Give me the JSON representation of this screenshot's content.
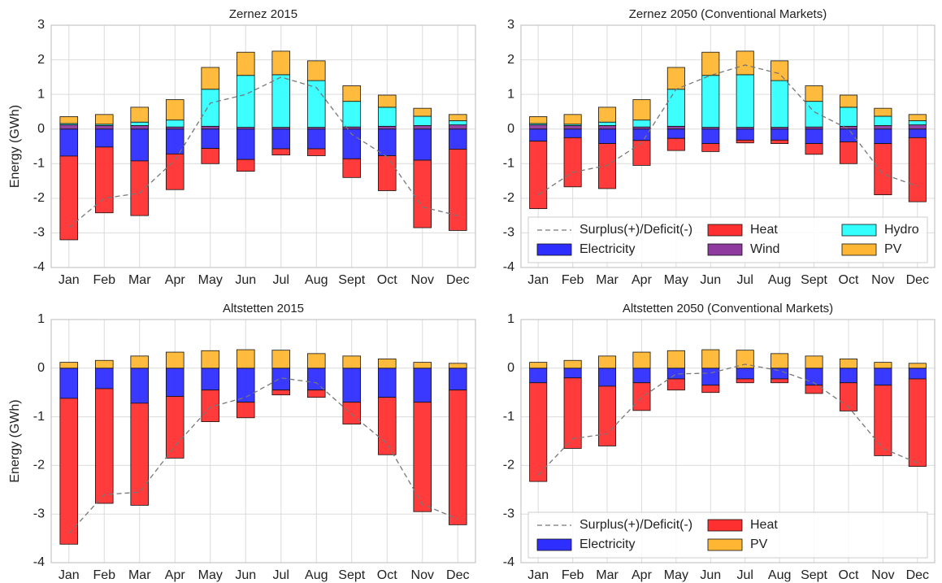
{
  "chart_data": [
    {
      "type": "bar",
      "stacked": true,
      "title": "Zernez 2015",
      "ylabel": "Energy (GWh)",
      "categories": [
        "Jan",
        "Feb",
        "Mar",
        "Apr",
        "May",
        "Jun",
        "Jul",
        "Aug",
        "Sept",
        "Oct",
        "Nov",
        "Dec"
      ],
      "ylim": [
        -4,
        3
      ],
      "yticks": [
        -4,
        -3,
        -2,
        -1,
        0,
        1,
        2,
        3
      ],
      "grid": true,
      "legend": false,
      "line": {
        "name": "Surplus(+)/Deficit(-)",
        "color": "#777777",
        "values": [
          -2.85,
          -2.0,
          -1.85,
          -0.9,
          0.75,
          1.0,
          1.5,
          1.2,
          -0.15,
          -0.8,
          -2.25,
          -2.5
        ]
      },
      "series": [
        {
          "name": "Electricity",
          "color": "#2e2eff",
          "values": [
            -0.78,
            -0.52,
            -0.92,
            -0.72,
            -0.56,
            -0.88,
            -0.57,
            -0.57,
            -0.86,
            -0.77,
            -0.9,
            -0.58
          ]
        },
        {
          "name": "Heat",
          "color": "#ff3030",
          "values": [
            -2.42,
            -1.9,
            -1.58,
            -1.03,
            -0.44,
            -0.34,
            -0.18,
            -0.2,
            -0.54,
            -1.01,
            -1.95,
            -2.35
          ]
        },
        {
          "name": "Wind",
          "color": "#8e3a9e",
          "values": [
            0.12,
            0.1,
            0.1,
            0.06,
            0.08,
            0.05,
            0.05,
            0.05,
            0.06,
            0.08,
            0.1,
            0.12
          ]
        },
        {
          "name": "Hydro",
          "color": "#33ffff",
          "values": [
            0.04,
            0.04,
            0.1,
            0.2,
            1.07,
            1.5,
            1.52,
            1.35,
            0.74,
            0.55,
            0.27,
            0.12
          ]
        },
        {
          "name": "PV",
          "color": "#ffb733",
          "values": [
            0.2,
            0.28,
            0.43,
            0.59,
            0.63,
            0.67,
            0.68,
            0.57,
            0.45,
            0.35,
            0.23,
            0.18
          ]
        }
      ]
    },
    {
      "type": "bar",
      "stacked": true,
      "title": "Zernez 2050 (Conventional Markets)",
      "categories": [
        "Jan",
        "Feb",
        "Mar",
        "Apr",
        "May",
        "Jun",
        "Jul",
        "Aug",
        "Sept",
        "Oct",
        "Nov",
        "Dec"
      ],
      "ylim": [
        -4,
        3
      ],
      "yticks": [
        -4,
        -3,
        -2,
        -1,
        0,
        1,
        2,
        3
      ],
      "grid": true,
      "legend": "lower center",
      "line": {
        "name": "Surplus(+)/Deficit(-)",
        "color": "#777777",
        "values": [
          -1.9,
          -1.25,
          -1.05,
          -0.4,
          1.15,
          1.55,
          1.85,
          1.6,
          0.5,
          0.0,
          -1.3,
          -1.65
        ]
      },
      "series": [
        {
          "name": "Electricity",
          "color": "#2e2eff",
          "values": [
            -0.35,
            -0.25,
            -0.42,
            -0.33,
            -0.27,
            -0.42,
            -0.32,
            -0.32,
            -0.42,
            -0.37,
            -0.42,
            -0.25
          ]
        },
        {
          "name": "Heat",
          "color": "#ff3030",
          "values": [
            -1.95,
            -1.42,
            -1.3,
            -0.72,
            -0.35,
            -0.23,
            -0.08,
            -0.1,
            -0.31,
            -0.63,
            -1.48,
            -1.85
          ]
        },
        {
          "name": "Wind",
          "color": "#8e3a9e",
          "values": [
            0.12,
            0.1,
            0.1,
            0.06,
            0.08,
            0.05,
            0.05,
            0.05,
            0.06,
            0.08,
            0.1,
            0.12
          ]
        },
        {
          "name": "Hydro",
          "color": "#33ffff",
          "values": [
            0.04,
            0.04,
            0.1,
            0.2,
            1.07,
            1.5,
            1.52,
            1.35,
            0.74,
            0.55,
            0.27,
            0.12
          ]
        },
        {
          "name": "PV",
          "color": "#ffb733",
          "values": [
            0.2,
            0.28,
            0.43,
            0.59,
            0.63,
            0.67,
            0.68,
            0.57,
            0.45,
            0.35,
            0.23,
            0.18
          ]
        }
      ]
    },
    {
      "type": "bar",
      "stacked": true,
      "title": "Altstetten 2015",
      "ylabel": "Energy (GWh)",
      "categories": [
        "Jan",
        "Feb",
        "Mar",
        "Apr",
        "May",
        "Jun",
        "Jul",
        "Aug",
        "Sept",
        "Oct",
        "Nov",
        "Dec"
      ],
      "ylim": [
        -4,
        1
      ],
      "yticks": [
        -4,
        -3,
        -2,
        -1,
        0,
        1
      ],
      "grid": true,
      "legend": false,
      "line": {
        "name": "Surplus(+)/Deficit(-)",
        "color": "#777777",
        "values": [
          -3.4,
          -2.6,
          -2.55,
          -1.6,
          -0.8,
          -0.6,
          -0.2,
          -0.3,
          -0.95,
          -1.55,
          -2.8,
          -3.1
        ]
      },
      "series": [
        {
          "name": "Electricity",
          "color": "#2e2eff",
          "values": [
            -0.62,
            -0.42,
            -0.72,
            -0.58,
            -0.45,
            -0.7,
            -0.45,
            -0.45,
            -0.7,
            -0.6,
            -0.7,
            -0.45
          ]
        },
        {
          "name": "Heat",
          "color": "#ff3030",
          "values": [
            -3.0,
            -2.36,
            -2.1,
            -1.27,
            -0.65,
            -0.32,
            -0.1,
            -0.15,
            -0.45,
            -1.18,
            -2.25,
            -2.77
          ]
        },
        {
          "name": "PV",
          "color": "#ffb733",
          "values": [
            0.12,
            0.16,
            0.25,
            0.33,
            0.36,
            0.38,
            0.37,
            0.3,
            0.25,
            0.19,
            0.12,
            0.1
          ]
        }
      ]
    },
    {
      "type": "bar",
      "stacked": true,
      "title": "Altstetten 2050 (Conventional Markets)",
      "categories": [
        "Jan",
        "Feb",
        "Mar",
        "Apr",
        "May",
        "Jun",
        "Jul",
        "Aug",
        "Sept",
        "Oct",
        "Nov",
        "Dec"
      ],
      "ylim": [
        -4,
        1
      ],
      "yticks": [
        -4,
        -3,
        -2,
        -1,
        0,
        1
      ],
      "grid": true,
      "legend": "lower center",
      "line": {
        "name": "Surplus(+)/Deficit(-)",
        "color": "#777777",
        "values": [
          -2.2,
          -1.45,
          -1.35,
          -0.6,
          -0.12,
          -0.1,
          0.08,
          -0.05,
          -0.3,
          -0.8,
          -1.65,
          -1.95
        ]
      },
      "series": [
        {
          "name": "Electricity",
          "color": "#2e2eff",
          "values": [
            -0.3,
            -0.2,
            -0.37,
            -0.3,
            -0.22,
            -0.35,
            -0.22,
            -0.22,
            -0.35,
            -0.3,
            -0.35,
            -0.22
          ]
        },
        {
          "name": "Heat",
          "color": "#ff3030",
          "values": [
            -2.03,
            -1.45,
            -1.23,
            -0.57,
            -0.23,
            -0.15,
            -0.08,
            -0.08,
            -0.17,
            -0.58,
            -1.45,
            -1.8
          ]
        },
        {
          "name": "PV",
          "color": "#ffb733",
          "values": [
            0.12,
            0.16,
            0.25,
            0.33,
            0.36,
            0.38,
            0.37,
            0.3,
            0.25,
            0.19,
            0.12,
            0.1
          ]
        }
      ]
    }
  ]
}
